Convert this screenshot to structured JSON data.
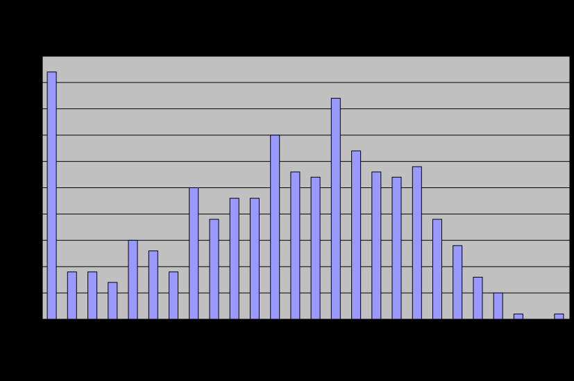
{
  "colors": {
    "background": "#000000",
    "plot_area": "#c0c0c0",
    "gridline": "#000000",
    "bar_fill": "#9999ff",
    "bar_stroke": "#000000"
  },
  "chart_data": {
    "type": "bar",
    "title": "",
    "xlabel": "",
    "ylabel": "",
    "ylim": [
      0,
      10
    ],
    "grid": true,
    "legend": "none",
    "values": [
      9.4,
      1.8,
      1.8,
      1.4,
      3.0,
      2.6,
      1.8,
      5.0,
      3.8,
      4.6,
      4.6,
      7.0,
      5.6,
      5.4,
      8.4,
      6.4,
      5.6,
      5.4,
      5.8,
      3.8,
      2.8,
      1.6,
      1.0,
      0.2,
      0.0,
      0.2
    ]
  }
}
